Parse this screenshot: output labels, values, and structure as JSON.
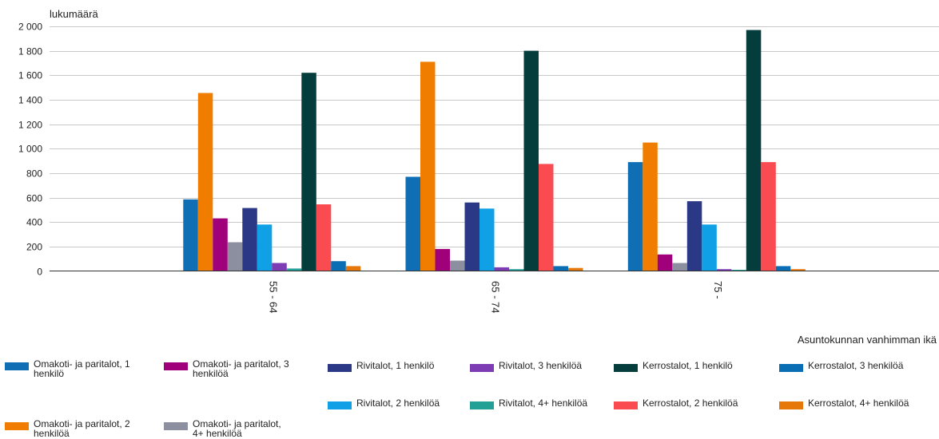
{
  "chart_data": {
    "type": "bar",
    "ylabel": "lukumäärä",
    "xlabel": "Asuntokunnan vanhimman ikä",
    "ylim": [
      0,
      2000
    ],
    "y_ticks": [
      "0",
      "200",
      "400",
      "600",
      "800",
      "1 000",
      "1 200",
      "1 400",
      "1 600",
      "1 800",
      "2 000"
    ],
    "categories": [
      "55 - 64",
      "65 - 74",
      "75 -"
    ],
    "grid": true,
    "legend_position": "bottom",
    "series": [
      {
        "name": "Omakoti- ja paritalot, 1 henkilö",
        "color": "#0f6eb4",
        "values": [
          585,
          770,
          890
        ]
      },
      {
        "name": "Omakoti- ja paritalot, 2 henkilöä",
        "color": "#f07d00",
        "values": [
          1455,
          1710,
          1050
        ]
      },
      {
        "name": "Omakoti- ja paritalot, 3 henkilöä",
        "color": "#a0007a",
        "values": [
          430,
          180,
          135
        ]
      },
      {
        "name": "Omakoti- ja paritalot, 4+ henkilöä",
        "color": "#8c8fa0",
        "values": [
          235,
          85,
          65
        ]
      },
      {
        "name": "Rivitalot, 1 henkilö",
        "color": "#2b3886",
        "values": [
          515,
          560,
          570
        ]
      },
      {
        "name": "Rivitalot, 2 henkilöä",
        "color": "#0fa0e6",
        "values": [
          380,
          510,
          380
        ]
      },
      {
        "name": "Rivitalot, 3 henkilöä",
        "color": "#7d3cb4",
        "values": [
          65,
          30,
          15
        ]
      },
      {
        "name": "Rivitalot, 4+ henkilöä",
        "color": "#23a096",
        "values": [
          20,
          15,
          10
        ]
      },
      {
        "name": "Kerrostalot, 1 henkilö",
        "color": "#053c3c",
        "values": [
          1620,
          1800,
          1970
        ]
      },
      {
        "name": "Kerrostalot, 2 henkilöä",
        "color": "#fa4b50",
        "values": [
          545,
          875,
          890
        ]
      },
      {
        "name": "Kerrostalot, 3 henkilöä",
        "color": "#0a6eb4",
        "values": [
          80,
          40,
          40
        ]
      },
      {
        "name": "Kerrostalot, 4+ henkilöä",
        "color": "#e6780a",
        "values": [
          40,
          25,
          15
        ]
      }
    ]
  },
  "legend": [
    {
      "label": "Omakoti- ja paritalot, 1 henkilö",
      "color": "#0f6eb4"
    },
    {
      "label": "Omakoti- ja paritalot, 3 henkilöä",
      "color": "#a0007a"
    },
    {
      "label": "Rivitalot, 1 henkilö",
      "color": "#2b3886"
    },
    {
      "label": "Rivitalot, 3 henkilöä",
      "color": "#7d3cb4"
    },
    {
      "label": "Kerrostalot, 1 henkilö",
      "color": "#053c3c"
    },
    {
      "label": "Kerrostalot, 3 henkilöä",
      "color": "#0a6eb4"
    },
    {
      "label": "Rivitalot, 2 henkilöä",
      "color": "#0fa0e6"
    },
    {
      "label": "Rivitalot, 4+ henkilöä",
      "color": "#23a096"
    },
    {
      "label": "Kerrostalot, 2 henkilöä",
      "color": "#fa4b50"
    },
    {
      "label": "Kerrostalot, 4+ henkilöä",
      "color": "#e6780a"
    },
    {
      "label": "Omakoti- ja paritalot, 2 henkilöä",
      "color": "#f07d00"
    },
    {
      "label": "Omakoti- ja paritalot, 4+ henkilöä",
      "color": "#8c8fa0"
    }
  ]
}
